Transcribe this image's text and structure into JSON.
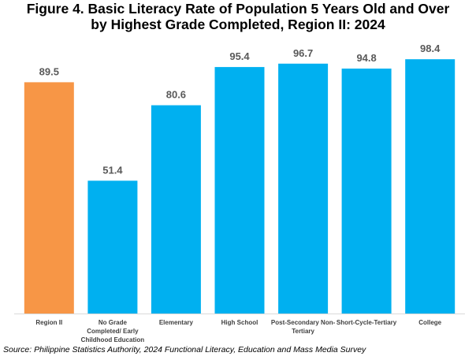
{
  "chart_data": {
    "type": "bar",
    "title_lines": [
      "Figure 4. Basic Literacy Rate of Population 5 Years Old and Over",
      "by Highest Grade Completed, Region II: 2024"
    ],
    "categories": [
      [
        "Region II"
      ],
      [
        "No Grade",
        "Completed/ Early",
        "Childhood Education"
      ],
      [
        "Elementary"
      ],
      [
        "High School"
      ],
      [
        "Post-Secondary Non-",
        "Tertiary"
      ],
      [
        "Short-Cycle-Tertiary"
      ],
      [
        "College"
      ]
    ],
    "values": [
      89.5,
      51.4,
      80.6,
      95.4,
      96.7,
      94.8,
      98.4
    ],
    "value_labels": [
      "89.5",
      "51.4",
      "80.6",
      "95.4",
      "96.7",
      "94.8",
      "98.4"
    ],
    "ylim": [
      0,
      100
    ],
    "grid": false,
    "colors": [
      "#F79646",
      "#00B0F0",
      "#00B0F0",
      "#00B0F0",
      "#00B0F0",
      "#00B0F0",
      "#00B0F0"
    ],
    "source": "Source: Philippine Statistics Authority, 2024 Functional Literacy, Education and Mass Media Survey"
  }
}
